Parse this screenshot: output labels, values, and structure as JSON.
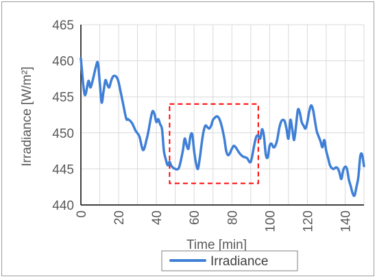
{
  "chart_data": {
    "type": "line",
    "title": "",
    "xlabel": "Time  [min]",
    "ylabel": "Irradiance [W/m²]",
    "xlim": [
      0,
      150
    ],
    "ylim": [
      440,
      465
    ],
    "x_ticks": [
      0,
      20,
      40,
      60,
      80,
      100,
      120,
      140
    ],
    "y_ticks": [
      440,
      445,
      450,
      455,
      460,
      465
    ],
    "grid": "vertical and horizontal",
    "legend_position": "bottom",
    "series": [
      {
        "name": "Irradiance",
        "color": "#3f7fd6",
        "x": [
          0,
          2,
          4,
          5,
          6,
          8,
          9,
          10,
          11,
          12,
          13,
          14,
          15,
          16,
          17,
          18,
          19,
          20,
          22,
          24,
          25,
          27,
          29,
          31,
          33,
          35,
          36,
          37,
          38,
          39,
          40,
          41,
          42,
          43,
          44,
          45,
          46,
          47,
          48,
          50,
          52,
          54,
          55,
          56,
          57,
          58,
          59,
          60,
          61,
          62,
          63,
          64,
          65,
          66,
          67,
          68,
          69,
          70,
          71,
          72,
          73,
          74,
          75,
          76,
          77,
          78,
          79,
          80,
          81,
          82,
          83,
          84,
          85,
          86,
          88,
          90,
          92,
          93,
          94,
          95,
          96,
          97,
          98,
          99,
          100,
          101,
          102,
          103,
          104,
          105,
          106,
          107,
          108,
          109,
          110,
          111,
          112,
          113,
          114,
          115,
          116,
          117,
          118,
          119,
          120,
          121,
          122,
          123,
          124,
          125,
          126,
          127,
          128,
          129,
          130,
          131,
          132,
          133,
          134,
          135,
          136,
          137,
          138,
          139,
          140,
          141,
          142,
          143,
          144,
          145,
          146,
          147,
          148,
          149,
          150
        ],
        "values": [
          460.3,
          455.3,
          457.2,
          456.3,
          457.0,
          459.2,
          459.7,
          457.0,
          454.2,
          455.7,
          457.3,
          456.7,
          456.3,
          457.2,
          457.8,
          457.9,
          457.7,
          457.0,
          454.5,
          452.0,
          451.9,
          451.4,
          450.3,
          449.5,
          447.6,
          449.3,
          450.5,
          452.0,
          453.0,
          452.6,
          451.5,
          451.9,
          451.2,
          450.5,
          447.5,
          446.3,
          445.5,
          446.0,
          445.4,
          445.0,
          445.2,
          447.5,
          449.2,
          448.3,
          447.8,
          449.5,
          449.8,
          447.5,
          445.8,
          445.0,
          446.5,
          448.5,
          450.2,
          451.0,
          450.8,
          450.6,
          451.0,
          451.8,
          452.1,
          452.3,
          452.1,
          451.5,
          450.5,
          449.2,
          447.5,
          446.9,
          447.2,
          447.8,
          448.2,
          448.0,
          447.6,
          447.2,
          446.9,
          446.7,
          446.5,
          446.0,
          448.5,
          449.5,
          449.6,
          449.2,
          450.5,
          449.5,
          447.0,
          446.6,
          448.2,
          448.5,
          448.0,
          448.2,
          449.0,
          450.5,
          451.5,
          451.8,
          451.6,
          450.5,
          449.2,
          451.8,
          450.5,
          449.0,
          451.0,
          453.2,
          452.8,
          451.5,
          451.0,
          450.6,
          451.5,
          453.0,
          453.8,
          453.2,
          451.7,
          450.2,
          449.5,
          448.8,
          448.0,
          449.0,
          447.5,
          446.5,
          445.5,
          445.1,
          445.0,
          445.2,
          445.1,
          444.5,
          443.6,
          444.8,
          445.3,
          445.0,
          443.5,
          442.6,
          441.6,
          441.3,
          442.5,
          443.8,
          446.7,
          447.0,
          445.4
        ]
      }
    ],
    "annotations": [
      {
        "type": "dashed-rectangle",
        "color": "#ff0000",
        "x_range": [
          47,
          94
        ],
        "y_range": [
          443,
          454
        ]
      }
    ]
  },
  "legend": {
    "label": "Irradiance"
  }
}
